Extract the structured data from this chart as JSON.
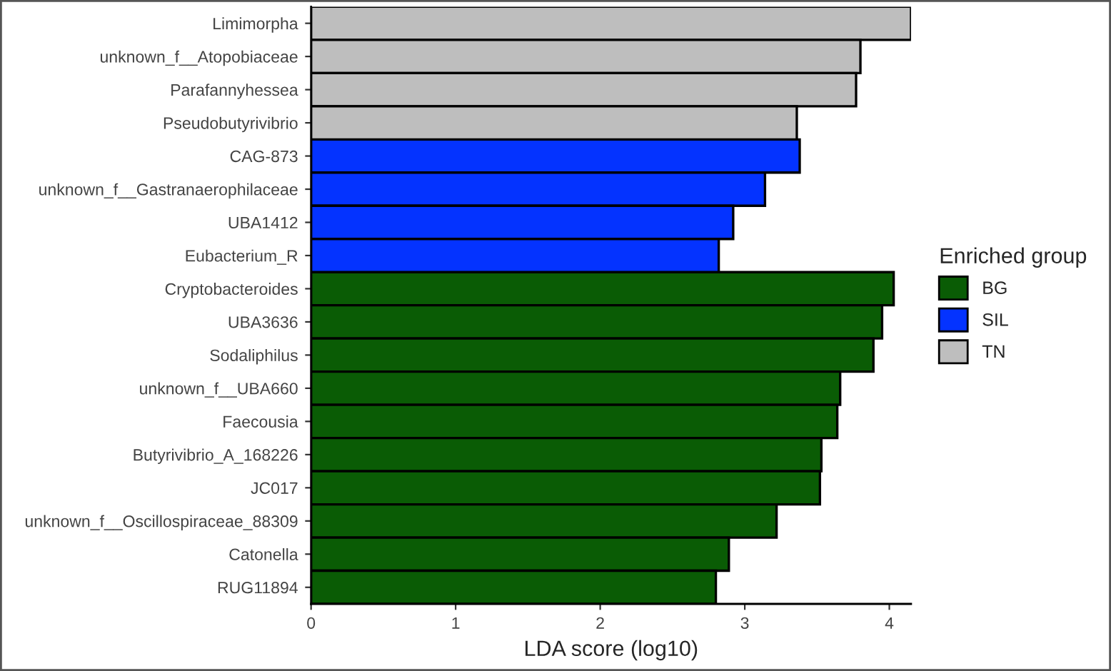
{
  "chart_data": {
    "type": "bar",
    "orientation": "horizontal",
    "xlabel": "LDA score (log10)",
    "legend_title": "Enriched group",
    "legend": "right",
    "grid": false,
    "categories": [
      "Limimorpha",
      "unknown_f__Atopobiaceae",
      "Parafannyhessea",
      "Pseudobutyrivibrio",
      "CAG-873",
      "unknown_f__Gastranaerophilaceae",
      "UBA1412",
      "Eubacterium_R",
      "Cryptobacteroides",
      "UBA3636",
      "Sodaliphilus",
      "unknown_f__UBA660",
      "Faecousia",
      "Butyrivibrio_A_168226",
      "JC017",
      "unknown_f__Oscillospiraceae_88309",
      "Catonella",
      "RUG11894"
    ],
    "series": [
      {
        "name": "BG",
        "color": "#0a5c05",
        "values": [
          null,
          null,
          null,
          null,
          null,
          null,
          null,
          null,
          4.03,
          3.95,
          3.89,
          3.66,
          3.64,
          3.53,
          3.52,
          3.22,
          2.89,
          2.8
        ]
      },
      {
        "name": "SIL",
        "color": "#0433ff",
        "values": [
          null,
          null,
          null,
          null,
          3.38,
          3.14,
          2.92,
          2.82,
          null,
          null,
          null,
          null,
          null,
          null,
          null,
          null,
          null,
          null
        ]
      },
      {
        "name": "TN",
        "color": "#bebebe",
        "values": [
          4.15,
          3.8,
          3.77,
          3.36,
          null,
          null,
          null,
          null,
          null,
          null,
          null,
          null,
          null,
          null,
          null,
          null,
          null,
          null
        ]
      }
    ],
    "xlim": [
      0,
      4.15
    ],
    "xticks": [
      0,
      1,
      2,
      3,
      4
    ]
  }
}
